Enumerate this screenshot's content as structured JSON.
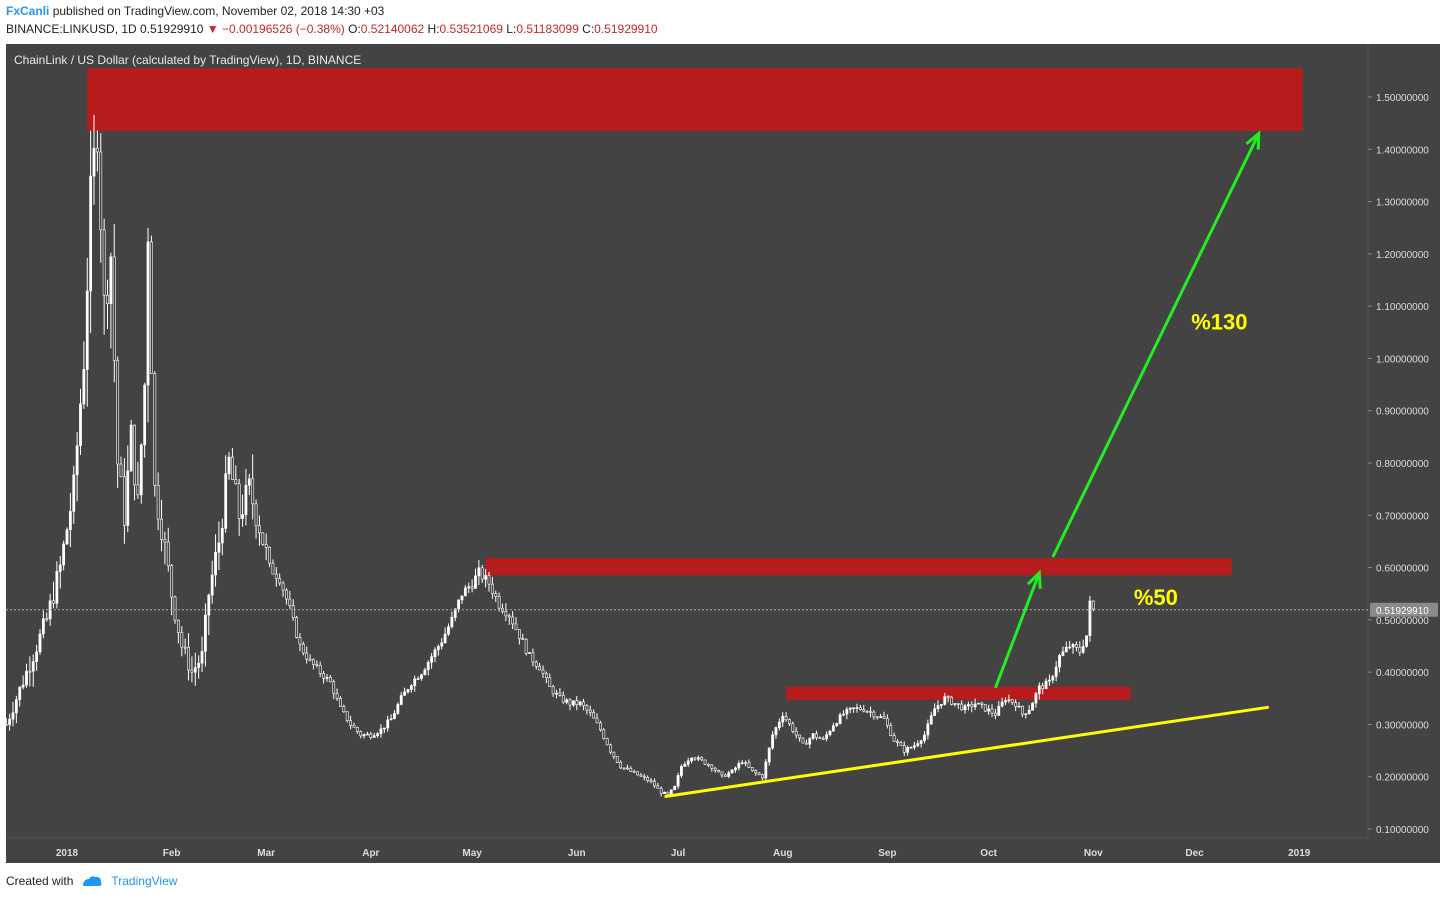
{
  "header": {
    "publisher": "FxCanli",
    "published_text": "published on TradingView.com, November 02, 2018 14:30 +03",
    "symbol": "BINANCE:LINKUSD, 1D",
    "last": "0.51929910",
    "change": "▼ −0.00196526 (−0.38%)",
    "o_label": "O:",
    "o_value": "0.52140062",
    "h_label": "H:",
    "h_value": "0.53521069",
    "l_label": "L:",
    "l_value": "0.51183099",
    "c_label": "C:",
    "c_value": "0.51929910"
  },
  "footer": {
    "created_with": "Created with",
    "brand": "TradingView"
  },
  "colors": {
    "panel_bg": "#434343",
    "candle": "#ffffff",
    "zone": "#b71c1c",
    "arrow": "#22ee22",
    "trendline": "#ffff00",
    "annotation": "#ffff00"
  },
  "chart_data": {
    "type": "candlestick",
    "title": "ChainLink / US Dollar (calculated by TradingView), 1D, BINANCE",
    "ylim": [
      0.08,
      1.57
    ],
    "yticks": [
      "1.50000000",
      "1.40000000",
      "1.30000000",
      "1.20000000",
      "1.10000000",
      "1.00000000",
      "0.90000000",
      "0.80000000",
      "0.70000000",
      "0.60000000",
      "0.50000000",
      "0.40000000",
      "0.30000000",
      "0.20000000",
      "0.10000000"
    ],
    "ytick_values": [
      1.5,
      1.4,
      1.3,
      1.2,
      1.1,
      1.0,
      0.9,
      0.8,
      0.7,
      0.6,
      0.5,
      0.4,
      0.3,
      0.2,
      0.1
    ],
    "xticks": [
      "2018",
      "Feb",
      "Mar",
      "Apr",
      "May",
      "Jun",
      "Jul",
      "Aug",
      "Sep",
      "Oct",
      "Nov",
      "Dec",
      "2019"
    ],
    "xtick_days": [
      0,
      31,
      59,
      90,
      120,
      151,
      181,
      212,
      243,
      273,
      304,
      334,
      365
    ],
    "last_price_label": "0.51929910",
    "last_price": 0.5193,
    "price_path": [
      [
        -18,
        0.3
      ],
      [
        -12,
        0.4
      ],
      [
        -6,
        0.5
      ],
      [
        -2,
        0.6
      ],
      [
        2,
        0.75
      ],
      [
        5,
        1.0
      ],
      [
        7,
        1.3
      ],
      [
        9,
        1.45
      ],
      [
        11,
        1.1
      ],
      [
        13,
        1.2
      ],
      [
        15,
        0.8
      ],
      [
        17,
        0.7
      ],
      [
        19,
        0.85
      ],
      [
        21,
        0.72
      ],
      [
        23,
        0.95
      ],
      [
        24,
        1.25
      ],
      [
        26,
        0.75
      ],
      [
        28,
        0.68
      ],
      [
        31,
        0.55
      ],
      [
        34,
        0.45
      ],
      [
        37,
        0.4
      ],
      [
        40,
        0.43
      ],
      [
        42,
        0.55
      ],
      [
        45,
        0.65
      ],
      [
        48,
        0.8
      ],
      [
        51,
        0.7
      ],
      [
        54,
        0.75
      ],
      [
        57,
        0.68
      ],
      [
        60,
        0.6
      ],
      [
        63,
        0.58
      ],
      [
        66,
        0.52
      ],
      [
        69,
        0.45
      ],
      [
        72,
        0.42
      ],
      [
        75,
        0.4
      ],
      [
        78,
        0.38
      ],
      [
        81,
        0.33
      ],
      [
        84,
        0.3
      ],
      [
        87,
        0.28
      ],
      [
        90,
        0.28
      ],
      [
        93,
        0.29
      ],
      [
        96,
        0.31
      ],
      [
        99,
        0.35
      ],
      [
        102,
        0.38
      ],
      [
        105,
        0.4
      ],
      [
        108,
        0.43
      ],
      [
        111,
        0.46
      ],
      [
        114,
        0.5
      ],
      [
        117,
        0.55
      ],
      [
        120,
        0.57
      ],
      [
        122,
        0.59
      ],
      [
        125,
        0.57
      ],
      [
        128,
        0.53
      ],
      [
        131,
        0.51
      ],
      [
        134,
        0.47
      ],
      [
        137,
        0.43
      ],
      [
        140,
        0.41
      ],
      [
        143,
        0.37
      ],
      [
        146,
        0.35
      ],
      [
        149,
        0.34
      ],
      [
        152,
        0.34
      ],
      [
        155,
        0.32
      ],
      [
        158,
        0.29
      ],
      [
        161,
        0.25
      ],
      [
        164,
        0.22
      ],
      [
        167,
        0.21
      ],
      [
        170,
        0.2
      ],
      [
        173,
        0.19
      ],
      [
        176,
        0.17
      ],
      [
        178,
        0.165
      ],
      [
        180,
        0.18
      ],
      [
        182,
        0.22
      ],
      [
        185,
        0.24
      ],
      [
        188,
        0.23
      ],
      [
        191,
        0.22
      ],
      [
        194,
        0.2
      ],
      [
        197,
        0.21
      ],
      [
        200,
        0.23
      ],
      [
        203,
        0.21
      ],
      [
        206,
        0.2
      ],
      [
        209,
        0.28
      ],
      [
        212,
        0.32
      ],
      [
        215,
        0.29
      ],
      [
        218,
        0.26
      ],
      [
        221,
        0.28
      ],
      [
        224,
        0.27
      ],
      [
        227,
        0.3
      ],
      [
        230,
        0.32
      ],
      [
        233,
        0.33
      ],
      [
        236,
        0.33
      ],
      [
        239,
        0.32
      ],
      [
        242,
        0.31
      ],
      [
        245,
        0.27
      ],
      [
        248,
        0.25
      ],
      [
        251,
        0.26
      ],
      [
        254,
        0.28
      ],
      [
        257,
        0.33
      ],
      [
        260,
        0.35
      ],
      [
        263,
        0.34
      ],
      [
        266,
        0.33
      ],
      [
        269,
        0.34
      ],
      [
        272,
        0.33
      ],
      [
        275,
        0.32
      ],
      [
        278,
        0.35
      ],
      [
        281,
        0.34
      ],
      [
        283,
        0.32
      ],
      [
        285,
        0.33
      ],
      [
        288,
        0.37
      ],
      [
        291,
        0.38
      ],
      [
        294,
        0.43
      ],
      [
        297,
        0.45
      ],
      [
        300,
        0.44
      ],
      [
        302,
        0.47
      ],
      [
        303,
        0.53
      ],
      [
        304,
        0.5193
      ]
    ],
    "zones": [
      {
        "name": "top-resistance",
        "x0": 6,
        "x1": 366,
        "y0": 1.435,
        "y1": 1.555
      },
      {
        "name": "mid-resistance",
        "x0": 124,
        "x1": 345,
        "y0": 0.585,
        "y1": 0.618
      },
      {
        "name": "low-zone",
        "x0": 213,
        "x1": 315,
        "y0": 0.347,
        "y1": 0.372
      }
    ],
    "trendline": {
      "x0": 177,
      "y0": 0.162,
      "x1": 356,
      "y1": 0.333
    },
    "arrows": [
      {
        "name": "short-arrow",
        "x0": 275,
        "y0": 0.37,
        "x1": 288,
        "y1": 0.59
      },
      {
        "name": "long-arrow",
        "x0": 292,
        "y0": 0.62,
        "x1": 353,
        "y1": 1.43
      }
    ],
    "annotations": [
      {
        "text": "%130",
        "x": 333,
        "y": 1.055
      },
      {
        "text": "%50",
        "x": 316,
        "y": 0.528
      }
    ]
  }
}
